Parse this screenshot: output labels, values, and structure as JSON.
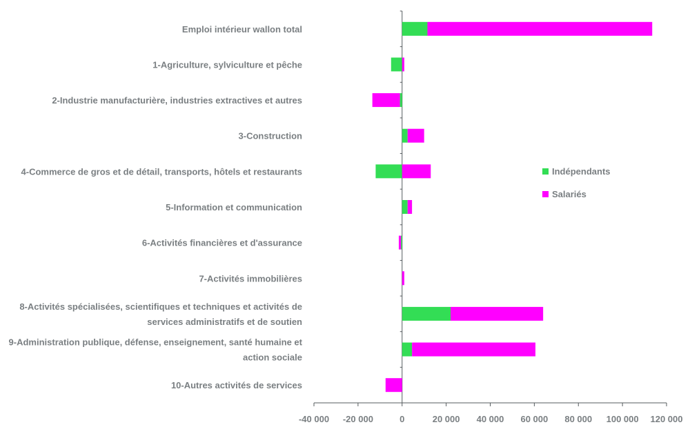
{
  "chart_data": {
    "type": "bar",
    "stacked": true,
    "orientation": "horizontal",
    "categories": [
      [
        "Emploi intérieur wallon total"
      ],
      [
        "1-Agriculture, sylviculture et pêche"
      ],
      [
        "2-Industrie manufacturière, industries extractives et autres"
      ],
      [
        "3-Construction"
      ],
      [
        "4-Commerce de gros et de détail, transports, hôtels et restaurants"
      ],
      [
        "5-Information et communication"
      ],
      [
        "6-Activités financières et d'assurance"
      ],
      [
        "7-Activités immobilières"
      ],
      [
        "8-Activités spécialisées, scientifiques et techniques et activités de",
        "services administratifs et de soutien"
      ],
      [
        "9-Administration publique, défense, enseignement, santé humaine et",
        "action sociale"
      ],
      [
        "10-Autres activités de services"
      ]
    ],
    "series": [
      {
        "name": "Indépendants",
        "color": "#33dd55",
        "values": [
          11500,
          -5000,
          -1000,
          2500,
          -12000,
          2500,
          -500,
          0,
          22000,
          4500,
          0
        ]
      },
      {
        "name": "Salariés",
        "color": "#ff00ff",
        "values": [
          102000,
          1000,
          -12500,
          7500,
          13000,
          2000,
          -1000,
          1000,
          42000,
          56000,
          -7500
        ]
      }
    ],
    "xlim": [
      -40000,
      120000
    ],
    "xticks": [
      -40000,
      -20000,
      0,
      20000,
      40000,
      60000,
      80000,
      100000,
      120000
    ],
    "xtick_labels": [
      "-40 000",
      "-20 000",
      "0",
      "20 000",
      "40 000",
      "60 000",
      "80 000",
      "100 000",
      "120 000"
    ],
    "legend_position": "right",
    "grid": false
  }
}
